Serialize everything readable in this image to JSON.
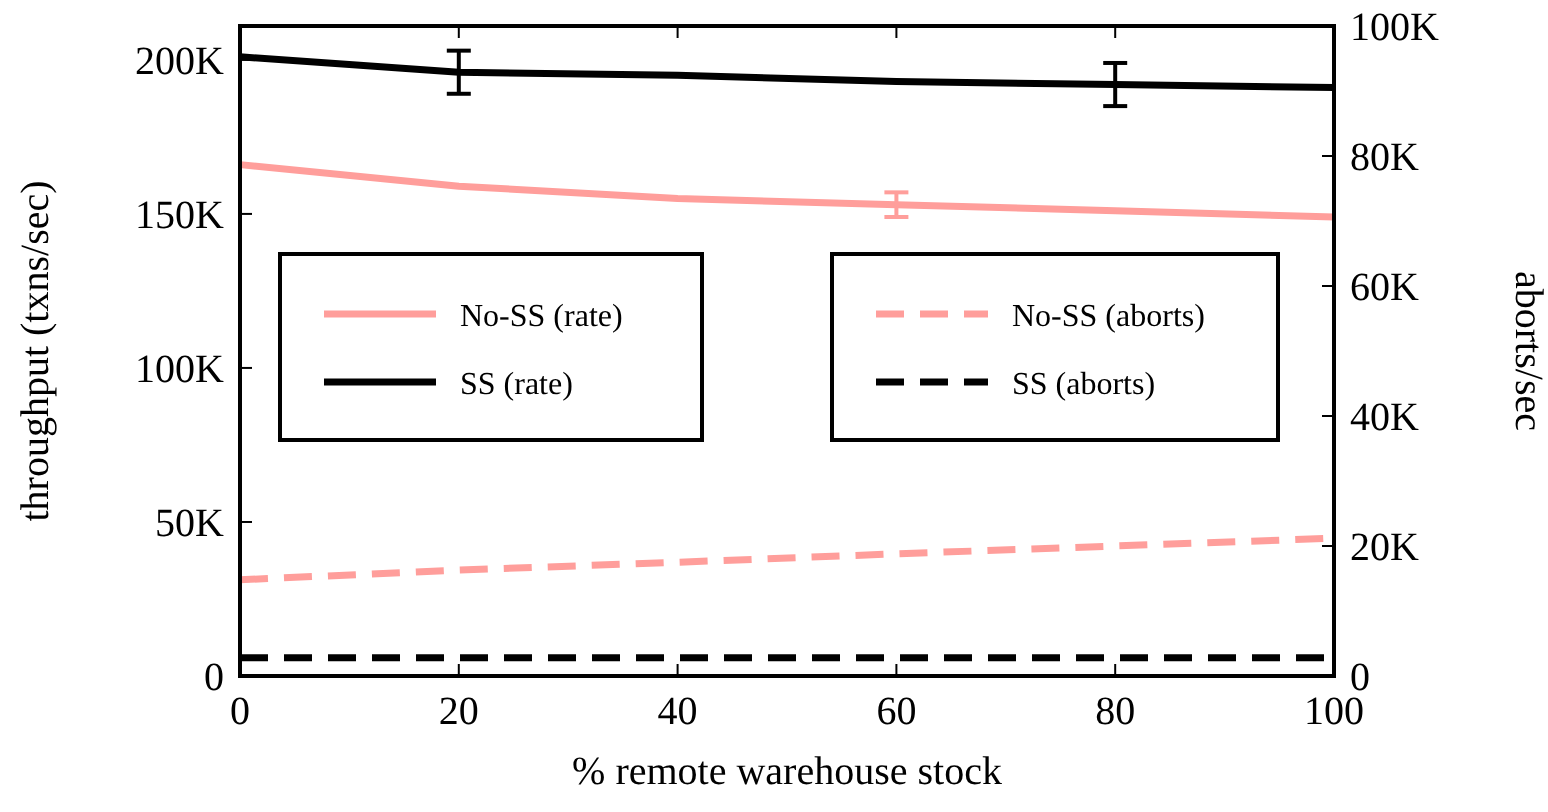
{
  "chart_data": {
    "type": "line",
    "xlabel": "% remote warehouse stock",
    "ylabel": "throughput (txns/sec)",
    "y2label": "aborts/sec",
    "x": [
      0,
      20,
      40,
      60,
      80,
      100
    ],
    "xlim": [
      0,
      100
    ],
    "xticks": [
      0,
      20,
      40,
      60,
      80,
      100
    ],
    "ylim": [
      0,
      211000
    ],
    "yticks": [
      {
        "value": 0,
        "label": "0"
      },
      {
        "value": 50000,
        "label": "50K"
      },
      {
        "value": 100000,
        "label": "100K"
      },
      {
        "value": 150000,
        "label": "150K"
      },
      {
        "value": 200000,
        "label": "200K"
      }
    ],
    "y2lim": [
      0,
      100000
    ],
    "y2ticks": [
      {
        "value": 0,
        "label": "0"
      },
      {
        "value": 20000,
        "label": "20K"
      },
      {
        "value": 40000,
        "label": "40K"
      },
      {
        "value": 60000,
        "label": "60K"
      },
      {
        "value": 80000,
        "label": "80K"
      },
      {
        "value": 100000,
        "label": "100K"
      }
    ],
    "legend": "center",
    "grid": false,
    "marker": "none",
    "series": [
      {
        "name": "No-SS (rate)",
        "color": "#ff9e9b",
        "line_style": "solid",
        "values": [
          166000,
          159000,
          155000,
          153000,
          151000,
          149000
        ],
        "errors": [
          null,
          null,
          null,
          4000,
          null,
          null
        ]
      },
      {
        "name": "SS (rate)",
        "color": "#000000",
        "line_style": "solid",
        "values": [
          201000,
          196000,
          195000,
          193000,
          192000,
          191000
        ],
        "errors": [
          null,
          7000,
          null,
          null,
          7000,
          null
        ]
      },
      {
        "name": "No-SS (aborts)",
        "color": "#ff9e9b",
        "line_style": "dashed",
        "axis": "y2",
        "values": [
          14800,
          16300,
          17500,
          18800,
          20000,
          21200
        ]
      },
      {
        "name": "SS (aborts)",
        "color": "#000000",
        "line_style": "dashed",
        "axis": "y2",
        "values": [
          2800,
          2800,
          2800,
          2800,
          2800,
          2800
        ]
      }
    ]
  }
}
